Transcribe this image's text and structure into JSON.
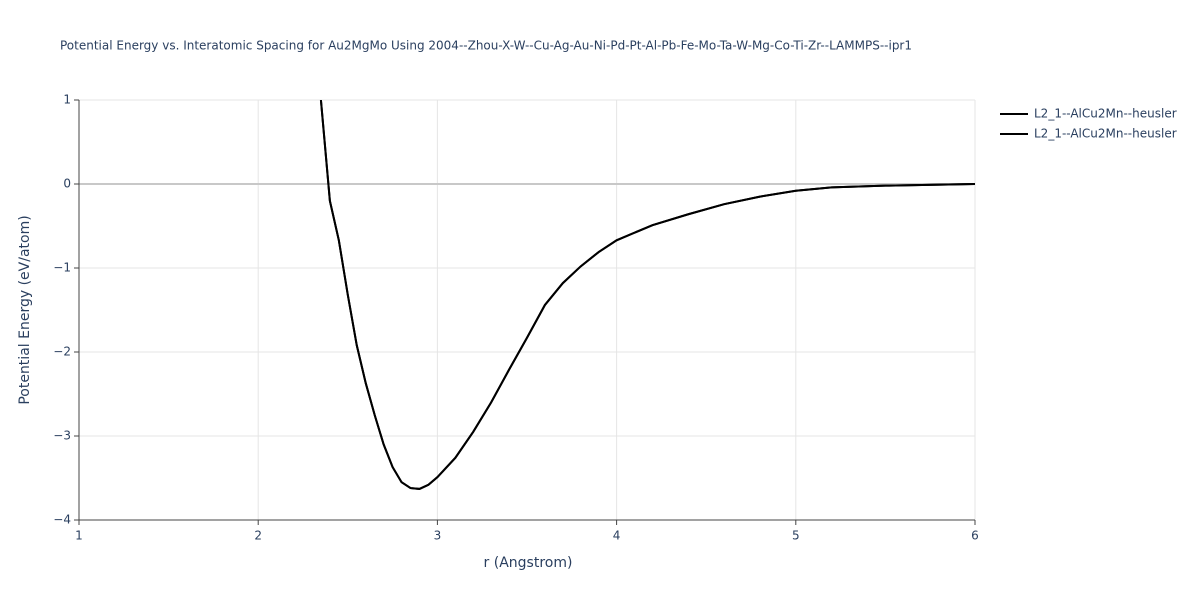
{
  "chart_data": {
    "type": "line",
    "title": "Potential Energy vs. Interatomic Spacing for Au2MgMo Using 2004--Zhou-X-W--Cu-Ag-Au-Ni-Pd-Pt-Al-Pb-Fe-Mo-Ta-W-Mg-Co-Ti-Zr--LAMMPS--ipr1",
    "xlabel": "r (Angstrom)",
    "ylabel": "Potential Energy (eV/atom)",
    "x": [
      2.35,
      2.4,
      2.45,
      2.5,
      2.55,
      2.6,
      2.65,
      2.7,
      2.75,
      2.8,
      2.85,
      2.9,
      2.95,
      3.0,
      3.1,
      3.2,
      3.3,
      3.4,
      3.5,
      3.6,
      3.7,
      3.8,
      3.9,
      4.0,
      4.2,
      4.4,
      4.6,
      4.8,
      5.0,
      5.2,
      5.5,
      6.0
    ],
    "series": [
      {
        "name": "L2_1--AlCu2Mn--heusler",
        "color": "#000000",
        "values": [
          1.0,
          -0.2,
          -0.67,
          -1.32,
          -1.92,
          -2.37,
          -2.75,
          -3.1,
          -3.37,
          -3.55,
          -3.62,
          -3.63,
          -3.58,
          -3.49,
          -3.26,
          -2.95,
          -2.6,
          -2.21,
          -1.83,
          -1.44,
          -1.18,
          -0.98,
          -0.81,
          -0.67,
          -0.49,
          -0.36,
          -0.24,
          -0.15,
          -0.08,
          -0.04,
          -0.02,
          0
        ]
      },
      {
        "name": "L2_1--AlCu2Mn--heusler",
        "color": "#000000",
        "values": [
          1.0,
          -0.2,
          -0.67,
          -1.32,
          -1.92,
          -2.37,
          -2.75,
          -3.1,
          -3.37,
          -3.55,
          -3.62,
          -3.63,
          -3.58,
          -3.49,
          -3.26,
          -2.95,
          -2.6,
          -2.21,
          -1.83,
          -1.44,
          -1.18,
          -0.98,
          -0.81,
          -0.67,
          -0.49,
          -0.36,
          -0.24,
          -0.15,
          -0.08,
          -0.04,
          -0.02,
          0
        ]
      }
    ],
    "xlim": [
      1,
      6
    ],
    "xticks": [
      1,
      2,
      3,
      4,
      5,
      6
    ],
    "ylim": [
      -4,
      1
    ],
    "yticks": [
      {
        "value": -4,
        "label": "−4"
      },
      {
        "value": -3,
        "label": "−3"
      },
      {
        "value": -2,
        "label": "−2"
      },
      {
        "value": -1,
        "label": "−1"
      },
      0,
      1
    ],
    "grid": true,
    "legend": "right"
  }
}
